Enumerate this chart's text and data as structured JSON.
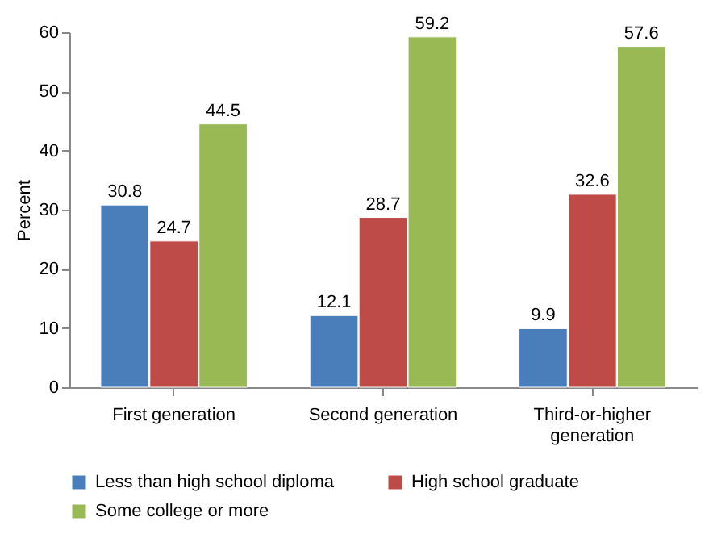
{
  "chart_data": {
    "type": "bar",
    "ylabel": "Percent",
    "categories": [
      "First generation",
      "Second generation",
      "Third-or-higher generation"
    ],
    "series": [
      {
        "name": "Less than high school diploma",
        "color": "#4a7ebb",
        "values": [
          30.8,
          12.1,
          9.9
        ]
      },
      {
        "name": "High school graduate",
        "color": "#be4b48",
        "values": [
          24.7,
          28.7,
          32.6
        ]
      },
      {
        "name": "Some college or more",
        "color": "#98b954",
        "values": [
          44.5,
          59.2,
          57.6
        ]
      }
    ],
    "ylim": [
      0,
      60
    ],
    "yticks": [
      0,
      10,
      20,
      30,
      40,
      50,
      60
    ],
    "grid": false,
    "legend": "bottom",
    "data_labels": true
  }
}
